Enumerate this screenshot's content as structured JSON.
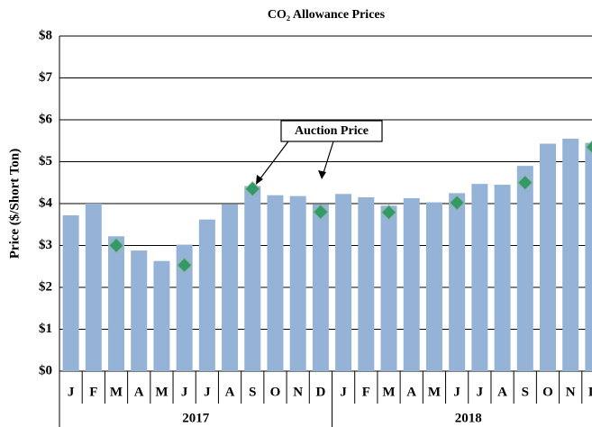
{
  "chart_data": {
    "type": "bar",
    "title": "CO₂ Allowance Prices",
    "y_label": "Price ($/Short Ton)",
    "categories": [
      "J",
      "F",
      "M",
      "A",
      "M",
      "J",
      "J",
      "A",
      "S",
      "O",
      "N",
      "D",
      "J",
      "F",
      "M",
      "A",
      "M",
      "J",
      "J",
      "A",
      "S",
      "O",
      "N",
      "D"
    ],
    "groups": [
      "2017",
      "2018"
    ],
    "series": [
      {
        "color": "#95b3d7",
        "values": [
          3.72,
          4.0,
          3.22,
          2.88,
          2.63,
          3.02,
          3.62,
          3.98,
          4.42,
          4.2,
          4.18,
          3.98,
          4.23,
          4.15,
          3.95,
          4.13,
          4.03,
          4.25,
          4.47,
          4.45,
          4.9,
          5.43,
          5.55,
          5.45
        ]
      },
      {
        "name": "Auction Price",
        "color": "#339966",
        "values": [
          null,
          null,
          3.0,
          null,
          null,
          2.53,
          null,
          null,
          4.35,
          null,
          null,
          3.8,
          null,
          null,
          3.79,
          null,
          null,
          4.02,
          null,
          null,
          4.5,
          null,
          null,
          5.35
        ]
      }
    ],
    "ylim": [
      0,
      8
    ],
    "yticks": [
      {
        "value": 0,
        "label": "$0"
      },
      {
        "value": 1,
        "label": "$1"
      },
      {
        "value": 2,
        "label": "$2"
      },
      {
        "value": 3,
        "label": "$3"
      },
      {
        "value": 4,
        "label": "$4"
      },
      {
        "value": 5,
        "label": "$5"
      },
      {
        "value": 6,
        "label": "$6"
      },
      {
        "value": 7,
        "label": "$7"
      },
      {
        "value": 8,
        "label": "$8"
      }
    ],
    "grid": true
  }
}
